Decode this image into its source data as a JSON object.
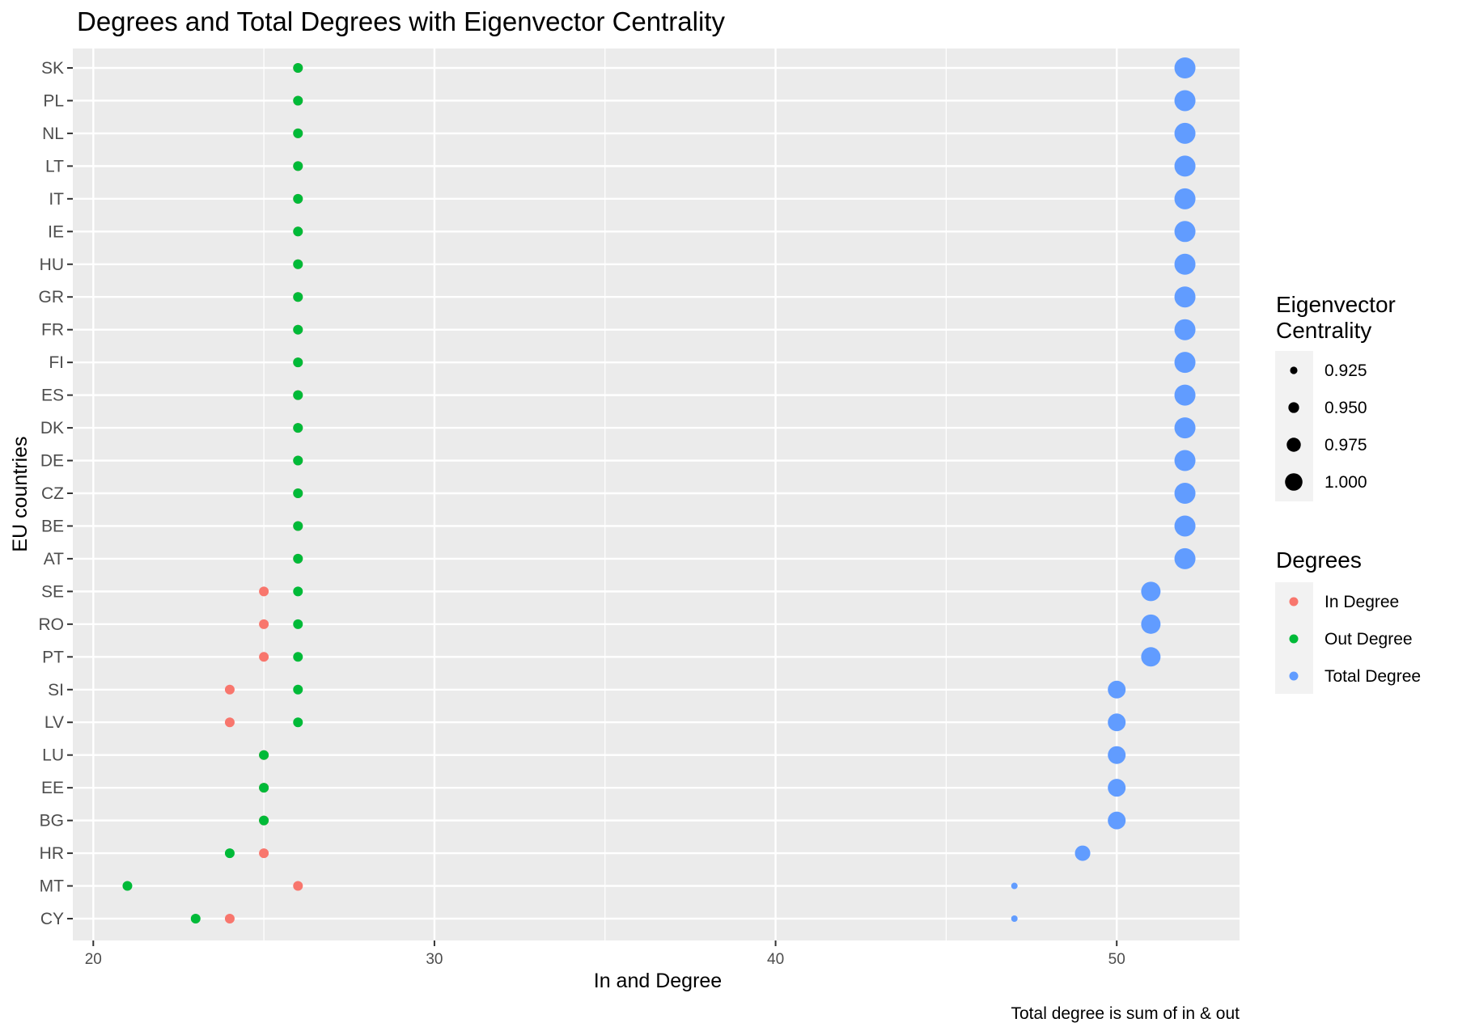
{
  "chart_data": {
    "type": "scatter",
    "title": "Degrees and Total Degrees with Eigenvector Centrality",
    "xlabel": "In and Degree",
    "ylabel": "EU countries",
    "caption": "Total degree is sum of in & out",
    "xlim": [
      19.4,
      53.6
    ],
    "x_ticks": [
      "20",
      "30",
      "40",
      "50"
    ],
    "grid": true,
    "legend_position": "right",
    "categories": [
      "CY",
      "MT",
      "HR",
      "BG",
      "EE",
      "LU",
      "LV",
      "SI",
      "PT",
      "RO",
      "SE",
      "AT",
      "BE",
      "CZ",
      "DE",
      "DK",
      "ES",
      "FI",
      "FR",
      "GR",
      "HU",
      "IE",
      "IT",
      "LT",
      "NL",
      "PL",
      "SK"
    ],
    "series": [
      {
        "name": "In Degree",
        "color": "#F8766D",
        "values": [
          24,
          26,
          25,
          25,
          25,
          25,
          24,
          24,
          25,
          25,
          25,
          26,
          26,
          26,
          26,
          26,
          26,
          26,
          26,
          26,
          26,
          26,
          26,
          26,
          26,
          26,
          26
        ]
      },
      {
        "name": "Out Degree",
        "color": "#00BA38",
        "values": [
          23,
          21,
          24,
          25,
          25,
          25,
          26,
          26,
          26,
          26,
          26,
          26,
          26,
          26,
          26,
          26,
          26,
          26,
          26,
          26,
          26,
          26,
          26,
          26,
          26,
          26,
          26
        ]
      },
      {
        "name": "Total Degree",
        "color": "#619CFF",
        "values": [
          47,
          47,
          49,
          50,
          50,
          50,
          50,
          50,
          51,
          51,
          51,
          52,
          52,
          52,
          52,
          52,
          52,
          52,
          52,
          52,
          52,
          52,
          52,
          52,
          52,
          52,
          52
        ],
        "eigenvector_centrality": [
          0.91,
          0.91,
          0.965,
          0.98,
          0.98,
          0.98,
          0.98,
          0.98,
          0.99,
          0.99,
          0.99,
          1.0,
          1.0,
          1.0,
          1.0,
          1.0,
          1.0,
          1.0,
          1.0,
          1.0,
          1.0,
          1.0,
          1.0,
          1.0,
          1.0,
          1.0,
          1.0
        ]
      }
    ],
    "size_legend": {
      "title_line1": "Eigenvector",
      "title_line2": "Centrality",
      "items": [
        {
          "label": "0.925",
          "value": 0.925
        },
        {
          "label": "0.950",
          "value": 0.95
        },
        {
          "label": "0.975",
          "value": 0.975
        },
        {
          "label": "1.000",
          "value": 1.0
        }
      ]
    },
    "color_legend": {
      "title": "Degrees",
      "items": [
        "In Degree",
        "Out Degree",
        "Total Degree"
      ]
    }
  },
  "colors": {
    "panel_background": "#EBEBEB",
    "grid": "#FFFFFF",
    "tick_text": "#4D4D4D"
  }
}
